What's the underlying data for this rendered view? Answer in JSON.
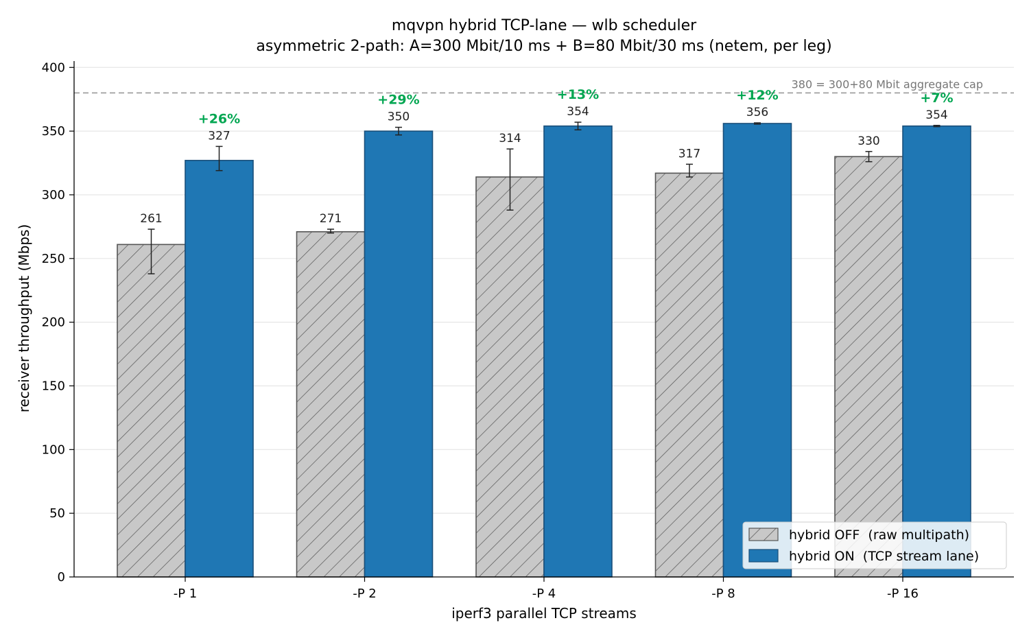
{
  "chart_data": {
    "type": "bar",
    "title": "mqvpn hybrid TCP-lane — wlb scheduler",
    "subtitle": "asymmetric 2-path: A=300 Mbit/10 ms + B=80 Mbit/30 ms (netem, per leg)",
    "xlabel": "iperf3 parallel TCP streams",
    "ylabel": "receiver throughput (Mbps)",
    "ylim": [
      0,
      405
    ],
    "yticks": [
      0,
      50,
      100,
      150,
      200,
      250,
      300,
      350,
      400
    ],
    "categories": [
      "-P 1",
      "-P 2",
      "-P 4",
      "-P 8",
      "-P 16"
    ],
    "series": [
      {
        "name": "hybrid OFF  (raw multipath)",
        "values": [
          261,
          271,
          314,
          317,
          330
        ],
        "err_low": [
          238,
          270,
          288,
          314,
          326
        ],
        "err_high": [
          273,
          273,
          336,
          324,
          334
        ],
        "labels": [
          "261",
          "271",
          "314",
          "317",
          "330"
        ],
        "color": "#c8c8c8",
        "edge": "#555555",
        "hatch": true
      },
      {
        "name": "hybrid ON  (TCP stream lane)",
        "values": [
          327,
          350,
          354,
          356,
          354
        ],
        "err_low": [
          319,
          347,
          351,
          355.5,
          353.5
        ],
        "err_high": [
          338,
          353,
          357,
          356.5,
          354.5
        ],
        "labels": [
          "327",
          "350",
          "354",
          "356",
          "354"
        ],
        "color": "#1f77b4",
        "edge": "#1a4f7a",
        "hatch": false
      }
    ],
    "improvements": [
      "+26%",
      "+29%",
      "+13%",
      "+12%",
      "+7%"
    ],
    "reference_line": {
      "value": 380,
      "label": "380 = 300+80 Mbit aggregate cap",
      "color": "#999999"
    },
    "grid": "horizontal",
    "legend_position": "lower-right"
  }
}
